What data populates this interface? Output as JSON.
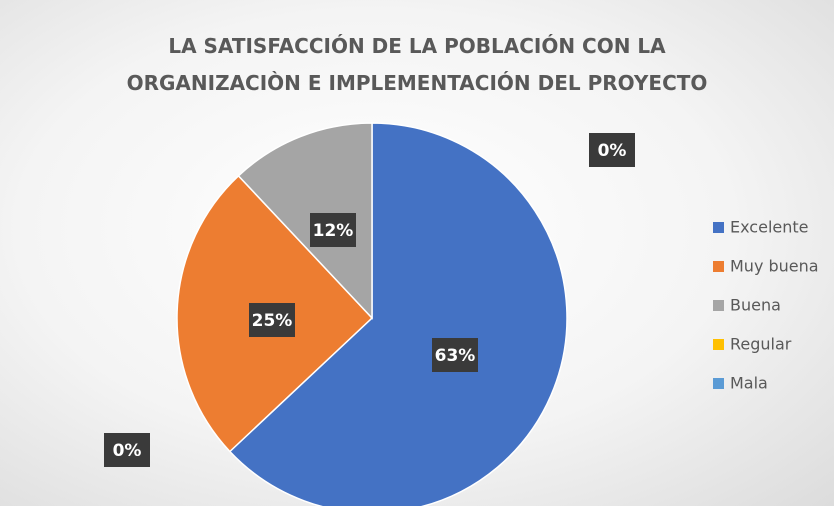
{
  "chart_data": {
    "type": "pie",
    "title": "LA SATISFACCIÓN DE LA POBLACIÓN CON LA ORGANIZACIÒN E IMPLEMENTACIÓN DEL PROYECTO",
    "categories": [
      "Excelente",
      "Muy buena",
      "Buena",
      "Regular",
      "Mala"
    ],
    "values": [
      63,
      25,
      12,
      0,
      0
    ],
    "value_labels": [
      "63%",
      "25%",
      "12%",
      "0%",
      "0%"
    ],
    "colors": [
      "#4472c4",
      "#ed7d31",
      "#a5a5a5",
      "#ffc000",
      "#5b9bd5"
    ],
    "legend": "right"
  }
}
